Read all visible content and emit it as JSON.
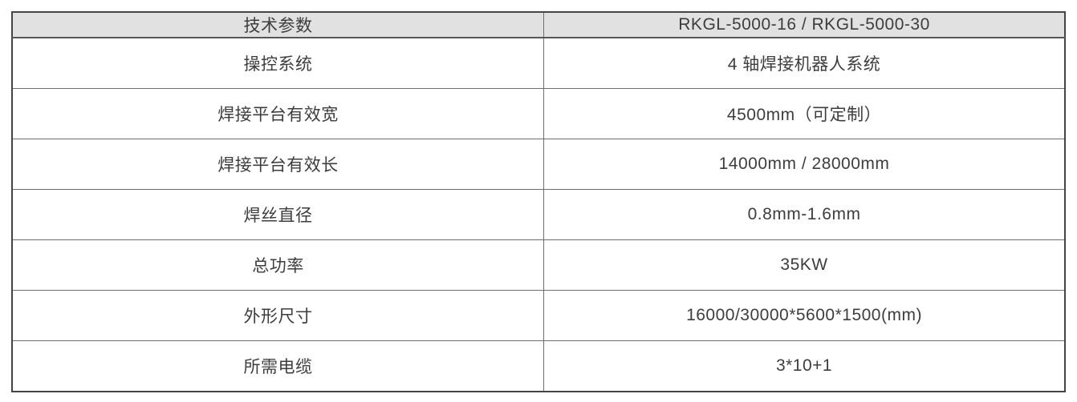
{
  "table": {
    "header": {
      "param_label": "技术参数",
      "value_label": "RKGL-5000-16 / RKGL-5000-30"
    },
    "rows": [
      {
        "param": "操控系统",
        "value": "4 轴焊接机器人系统"
      },
      {
        "param": "焊接平台有效宽",
        "value": "4500mm（可定制）"
      },
      {
        "param": "焊接平台有效长",
        "value": "14000mm / 28000mm"
      },
      {
        "param": "焊丝直径",
        "value": "0.8mm-1.6mm"
      },
      {
        "param": "总功率",
        "value": "35KW"
      },
      {
        "param": "外形尺寸",
        "value": "16000/30000*5600*1500(mm)"
      },
      {
        "param": "所需电缆",
        "value": "3*10+1"
      }
    ],
    "colors": {
      "header_bg": "#e1e1e1",
      "body_bg": "#ffffff",
      "border": "#6e6e6e",
      "outer_border": "#454545",
      "text": "#3d3d3d"
    }
  }
}
